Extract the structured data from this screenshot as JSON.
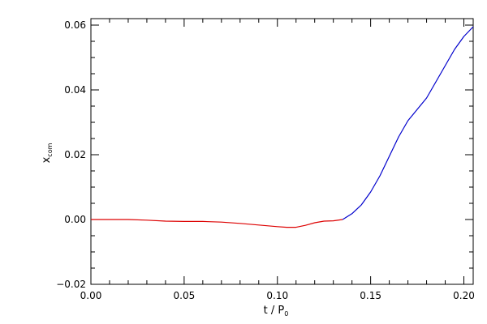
{
  "chart_data": {
    "type": "line",
    "title": "",
    "xlabel": "t / P",
    "xlabel_sub": "0",
    "ylabel": "x",
    "ylabel_sub": "com",
    "xlim": [
      0.0,
      0.205
    ],
    "ylim": [
      -0.02,
      0.062
    ],
    "x_ticks": [
      0.0,
      0.05,
      0.1,
      0.15,
      0.2
    ],
    "x_tick_labels": [
      "0.00",
      "0.05",
      "0.10",
      "0.15",
      "0.20"
    ],
    "y_ticks": [
      -0.02,
      0.0,
      0.02,
      0.04,
      0.06
    ],
    "y_tick_labels": [
      "−0.02",
      "0.00",
      "0.02",
      "0.04",
      "0.06"
    ],
    "grid": false,
    "legend": "none",
    "colors": {
      "axes": "#000000",
      "series_1": "#dd0000",
      "series_2": "#0000cc"
    },
    "series": [
      {
        "color": "#dd0000",
        "x": [
          0.0,
          0.01,
          0.02,
          0.03,
          0.04,
          0.05,
          0.06,
          0.07,
          0.08,
          0.09,
          0.1,
          0.105,
          0.11,
          0.115,
          0.12,
          0.125,
          0.13,
          0.135
        ],
        "y": [
          0.0,
          0.0,
          0.0,
          -0.0002,
          -0.0005,
          -0.0006,
          -0.0006,
          -0.0008,
          -0.0012,
          -0.0017,
          -0.0022,
          -0.0024,
          -0.0024,
          -0.0018,
          -0.001,
          -0.0005,
          -0.0004,
          0.0
        ]
      },
      {
        "color": "#0000cc",
        "x": [
          0.135,
          0.14,
          0.145,
          0.15,
          0.155,
          0.16,
          0.165,
          0.17,
          0.175,
          0.18,
          0.185,
          0.19,
          0.195,
          0.2,
          0.205
        ],
        "y": [
          0.0,
          0.0018,
          0.0045,
          0.0085,
          0.0135,
          0.0195,
          0.0255,
          0.0305,
          0.034,
          0.0375,
          0.0425,
          0.0475,
          0.0525,
          0.0565,
          0.0595
        ]
      }
    ]
  }
}
